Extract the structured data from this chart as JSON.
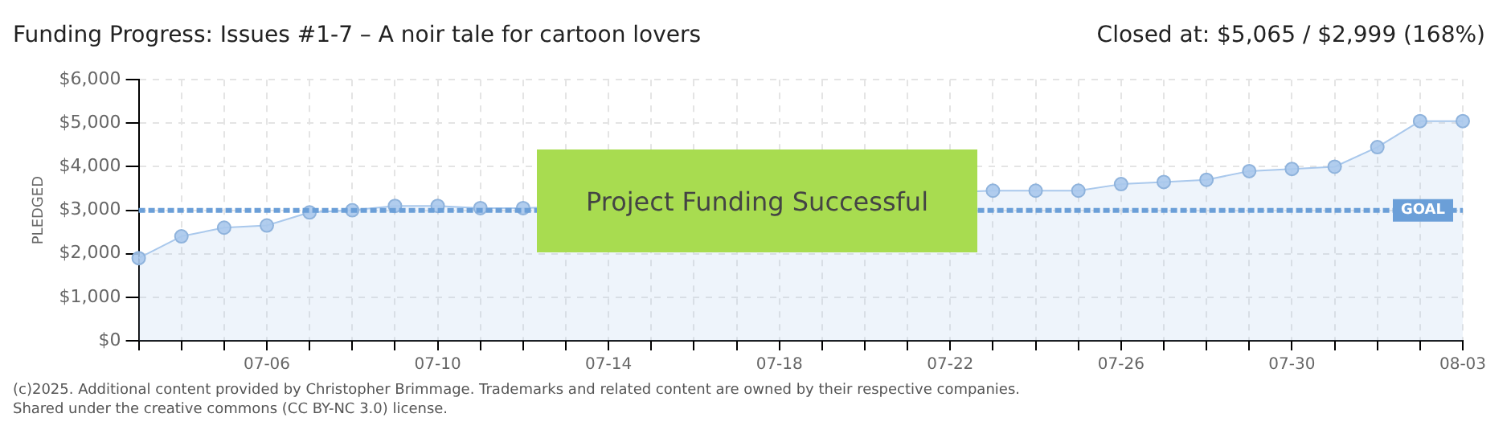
{
  "chart_data": {
    "type": "area",
    "title": "Funding Progress: Issues #1-7 – A noir tale for cartoon lovers",
    "subtitle": "Closed at: $5,065 / $2,999 (168%)",
    "ylabel": "PLEDGED",
    "categories": [
      null,
      null,
      null,
      "07-06",
      null,
      null,
      null,
      "07-10",
      null,
      null,
      null,
      "07-14",
      null,
      null,
      null,
      "07-18",
      null,
      null,
      null,
      "07-22",
      null,
      null,
      null,
      "07-26",
      null,
      null,
      null,
      "07-30",
      null,
      null,
      null,
      "08-03"
    ],
    "series": [
      {
        "color": "#a9c8ec",
        "values": [
          1900,
          2400,
          2600,
          2650,
          2950,
          3000,
          3100,
          3100,
          3050,
          3050,
          null,
          null,
          null,
          null,
          null,
          null,
          null,
          null,
          null,
          null,
          3450,
          3450,
          3450,
          3600,
          3650,
          3700,
          3900,
          3950,
          4000,
          4450,
          5050,
          5050
        ]
      }
    ],
    "ylim": [
      0,
      6000
    ],
    "yticks": [
      {
        "value": 0,
        "label": "$0"
      },
      {
        "value": 1000,
        "label": "$1,000"
      },
      {
        "value": 2000,
        "label": "$2,000"
      },
      {
        "value": 3000,
        "label": "$3,000"
      },
      {
        "value": 4000,
        "label": "$4,000"
      },
      {
        "value": 5000,
        "label": "$5,000"
      },
      {
        "value": 6000,
        "label": "$6,000"
      }
    ],
    "grid": true,
    "marker": "circle",
    "legend": false,
    "ref_lines": [
      {
        "axis": "y",
        "value": 2999,
        "label": "GOAL",
        "color": "#6b9fd8",
        "line_style": "dashed"
      }
    ],
    "annotations": [
      "Project Funding Successful",
      "(c)2025. Additional content provided by Christopher Brimmage. Trademarks and related content are owned by their respective companies.",
      "Shared under the creative commons (CC BY-NC 3.0) license."
    ]
  }
}
